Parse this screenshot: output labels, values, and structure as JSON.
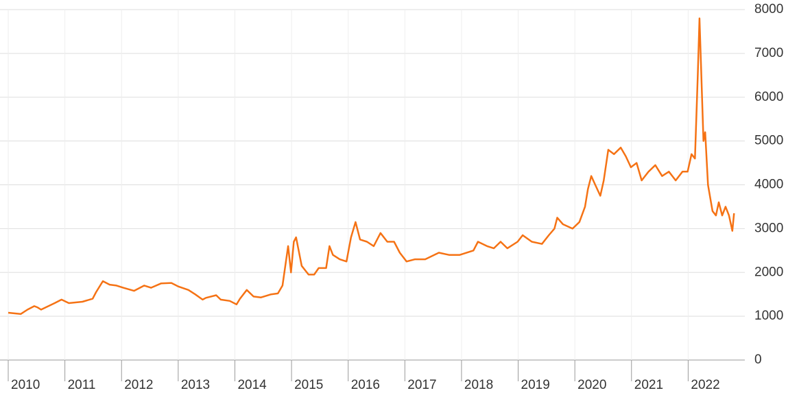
{
  "chart_data": {
    "type": "line",
    "x": [
      2010.0,
      2010.22,
      2010.34,
      2010.46,
      2010.52,
      2010.58,
      2010.82,
      2010.94,
      2011.07,
      2011.31,
      2011.49,
      2011.55,
      2011.67,
      2011.79,
      2011.91,
      2012.03,
      2012.22,
      2012.4,
      2012.52,
      2012.7,
      2012.88,
      2013.0,
      2013.18,
      2013.3,
      2013.43,
      2013.49,
      2013.67,
      2013.75,
      2013.91,
      2014.03,
      2014.09,
      2014.21,
      2014.33,
      2014.46,
      2014.64,
      2014.76,
      2014.84,
      2014.94,
      2014.99,
      2015.04,
      2015.08,
      2015.18,
      2015.3,
      2015.4,
      2015.48,
      2015.61,
      2015.67,
      2015.73,
      2015.85,
      2015.97,
      2016.05,
      2016.13,
      2016.21,
      2016.33,
      2016.45,
      2016.57,
      2016.69,
      2016.81,
      2016.91,
      2017.03,
      2017.18,
      2017.36,
      2017.6,
      2017.78,
      2017.97,
      2018.21,
      2018.29,
      2018.45,
      2018.57,
      2018.69,
      2018.81,
      2018.99,
      2019.08,
      2019.24,
      2019.42,
      2019.54,
      2019.64,
      2019.69,
      2019.79,
      2019.96,
      2020.08,
      2020.18,
      2020.23,
      2020.29,
      2020.36,
      2020.45,
      2020.51,
      2020.59,
      2020.69,
      2020.81,
      2020.9,
      2020.99,
      2021.09,
      2021.18,
      2021.3,
      2021.42,
      2021.54,
      2021.66,
      2021.78,
      2021.9,
      2021.99,
      2022.06,
      2022.12,
      2022.17,
      2022.2,
      2022.23,
      2022.27,
      2022.3,
      2022.35,
      2022.43,
      2022.49,
      2022.54,
      2022.6,
      2022.66,
      2022.72,
      2022.78,
      2022.81
    ],
    "series": [
      {
        "color": "#f57214",
        "values": [
          1080,
          1050,
          1150,
          1230,
          1200,
          1150,
          1300,
          1380,
          1300,
          1330,
          1400,
          1550,
          1800,
          1720,
          1700,
          1650,
          1580,
          1700,
          1650,
          1750,
          1760,
          1680,
          1600,
          1500,
          1380,
          1420,
          1480,
          1380,
          1350,
          1270,
          1400,
          1600,
          1450,
          1430,
          1500,
          1520,
          1700,
          2600,
          2000,
          2700,
          2800,
          2150,
          1950,
          1950,
          2100,
          2100,
          2600,
          2400,
          2300,
          2250,
          2800,
          3150,
          2750,
          2700,
          2600,
          2900,
          2700,
          2700,
          2450,
          2250,
          2300,
          2300,
          2450,
          2400,
          2400,
          2500,
          2700,
          2600,
          2550,
          2700,
          2550,
          2700,
          2850,
          2700,
          2650,
          2850,
          3000,
          3250,
          3100,
          3000,
          3150,
          3500,
          3900,
          4200,
          4000,
          3750,
          4100,
          4800,
          4700,
          4850,
          4650,
          4400,
          4500,
          4100,
          4300,
          4450,
          4200,
          4300,
          4100,
          4300,
          4300,
          4700,
          4600,
          6500,
          7800,
          6600,
          5000,
          5200,
          4000,
          3400,
          3300,
          3600,
          3300,
          3500,
          3300,
          2950,
          3350
        ]
      }
    ],
    "xlim": [
      2010,
      2023
    ],
    "xticks": [
      2010,
      2011,
      2012,
      2013,
      2014,
      2015,
      2016,
      2017,
      2018,
      2019,
      2020,
      2021,
      2022
    ],
    "ylim": [
      0,
      8000
    ],
    "yticks": [
      0,
      1000,
      2000,
      3000,
      4000,
      5000,
      6000,
      7000,
      8000
    ],
    "grid": true
  }
}
